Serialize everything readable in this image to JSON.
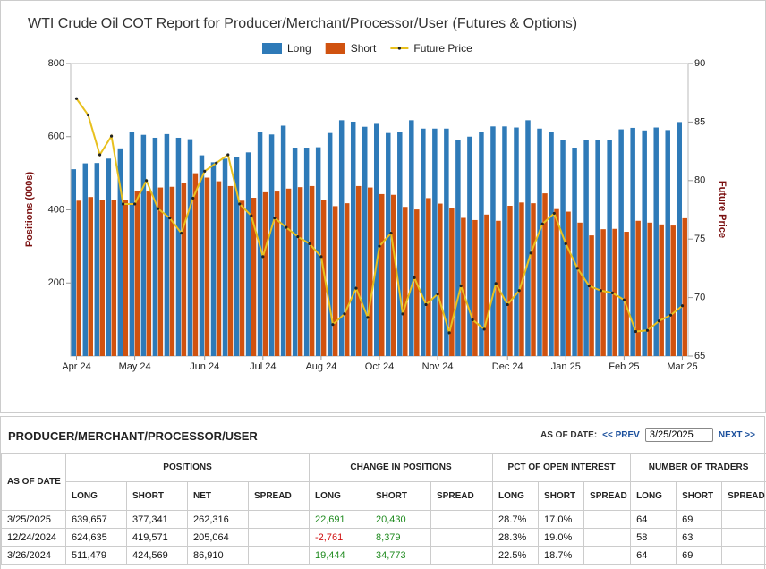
{
  "chart_data": {
    "type": "bar",
    "title": "WTI Crude Oil COT Report for Producer/Merchant/Processor/User (Futures & Options)",
    "y_label": "Positions (000s)",
    "y2_label": "Future Price",
    "categories": [
      "Apr 24",
      null,
      null,
      null,
      null,
      "May 24",
      null,
      null,
      null,
      null,
      null,
      "Jun 24",
      null,
      null,
      null,
      null,
      "Jul 24",
      null,
      null,
      null,
      null,
      "Aug 24",
      null,
      null,
      null,
      null,
      "Oct 24",
      null,
      null,
      null,
      null,
      "Nov 24",
      null,
      null,
      null,
      null,
      null,
      "Dec 24",
      null,
      null,
      null,
      null,
      "Jan 25",
      null,
      null,
      null,
      null,
      "Feb 25",
      null,
      null,
      null,
      null,
      "Mar 25"
    ],
    "series": [
      {
        "name": "Long",
        "color": "#2e7ab8",
        "values": [
          511,
          527,
          528,
          540,
          568,
          613,
          605,
          597,
          607,
          597,
          593,
          549,
          530,
          540,
          545,
          557,
          612,
          606,
          630,
          570,
          570,
          571,
          610,
          645,
          641,
          627,
          635,
          610,
          612,
          645,
          622,
          622,
          622,
          592,
          600,
          614,
          628,
          628,
          625,
          645,
          622,
          612,
          590,
          570,
          592,
          592,
          590,
          620,
          624,
          617,
          625,
          618,
          640
        ]
      },
      {
        "name": "Short",
        "color": "#d0520f",
        "values": [
          425,
          435,
          427,
          428,
          427,
          452,
          450,
          461,
          463,
          474,
          500,
          488,
          478,
          465,
          425,
          433,
          448,
          450,
          458,
          462,
          465,
          428,
          410,
          418,
          465,
          461,
          443,
          441,
          408,
          401,
          432,
          417,
          405,
          378,
          372,
          387,
          370,
          411,
          420,
          418,
          445,
          402,
          395,
          365,
          330,
          347,
          348,
          340,
          370,
          365,
          360,
          357,
          377
        ]
      },
      {
        "name": "Future Price",
        "color": "#e8c01e",
        "type": "line",
        "axis": "y2",
        "values": [
          87,
          85.6,
          82.2,
          83.8,
          78,
          78,
          80,
          77.6,
          76.8,
          75.5,
          78.5,
          80.8,
          81.5,
          82.2,
          78,
          77,
          73.5,
          76.8,
          76,
          75.2,
          74.6,
          73.5,
          67.7,
          68.6,
          70.8,
          68.3,
          74.4,
          75.5,
          68.6,
          71.7,
          69.4,
          70.3,
          67,
          71,
          68.1,
          67.3,
          71.2,
          69.4,
          70.6,
          73.8,
          76.3,
          77.2,
          74.6,
          72.5,
          71,
          70.6,
          70.4,
          69.8,
          67.1,
          67.2,
          68,
          68.5,
          69.3
        ]
      }
    ],
    "ylim": [
      0,
      800
    ],
    "yticks": [
      200,
      400,
      600,
      800
    ],
    "y2lim": [
      65,
      90
    ],
    "y2ticks": [
      65,
      70,
      75,
      80,
      85,
      90
    ],
    "grid": false,
    "legend": "top"
  },
  "table": {
    "title": "PRODUCER/MERCHANT/PROCESSOR/USER",
    "as_of_label": "AS OF DATE:",
    "prev": "<< PREV",
    "date": "3/25/2025",
    "next": "NEXT >>",
    "groups": [
      "AS OF DATE",
      "POSITIONS",
      "CHANGE IN POSITIONS",
      "PCT OF OPEN INTEREST",
      "NUMBER OF TRADERS"
    ],
    "columns": [
      "LONG",
      "SHORT",
      "NET",
      "SPREAD",
      "LONG",
      "SHORT",
      "SPREAD",
      "LONG",
      "SHORT",
      "SPREAD",
      "LONG",
      "SHORT",
      "SPREAD"
    ],
    "rows": [
      [
        "3/25/2025",
        "639,657",
        "377,341",
        "262,316",
        null,
        "22,691",
        "20,430",
        null,
        "28.7%",
        "17.0%",
        null,
        "64",
        "69",
        null
      ],
      [
        "12/24/2024",
        "624,635",
        "419,571",
        "205,064",
        null,
        "-2,761",
        "8,379",
        null,
        "28.3%",
        "19.0%",
        null,
        "58",
        "63",
        null
      ],
      [
        "3/26/2024",
        "511,479",
        "424,569",
        "86,910",
        null,
        "19,444",
        "34,773",
        null,
        "22.5%",
        "18.7%",
        null,
        "64",
        "69",
        null
      ]
    ]
  }
}
